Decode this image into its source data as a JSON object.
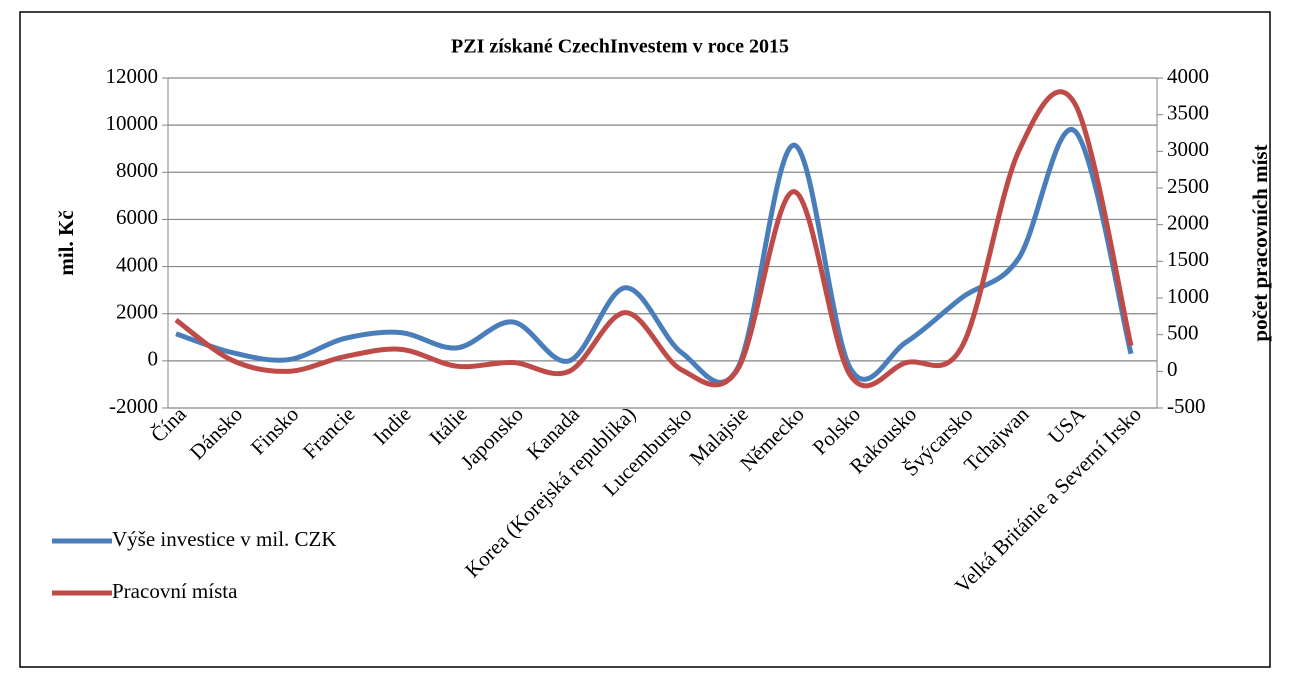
{
  "chart_data": {
    "type": "line",
    "title": "PZI získané CzechInvestem v roce 2015",
    "y_label": "mil. Kč",
    "y2_label": "počet pracovních míst",
    "categories": [
      "Čína",
      "Dánsko",
      "Finsko",
      "Francie",
      "Indie",
      "Itálie",
      "Japonsko",
      "Kanada",
      "Korea (Korejská republika)",
      "Lucembursko",
      "Malajsie",
      "Německo",
      "Polsko",
      "Rakousko",
      "Švýcarsko",
      "Tchajwan",
      "USA",
      "Velká Británie a Severní Irsko"
    ],
    "series": [
      {
        "name": "Výše investice v mil. CZK",
        "color": "#4a7ebb",
        "axis": "y",
        "values": [
          1150,
          350,
          50,
          950,
          1200,
          550,
          1650,
          0,
          3100,
          350,
          -300,
          9150,
          -300,
          800,
          2700,
          4350,
          9750,
          300
        ]
      },
      {
        "name": "Pracovní místa",
        "color": "#be4b48",
        "axis": "y2",
        "values": [
          700,
          150,
          0,
          200,
          300,
          70,
          120,
          0,
          800,
          20,
          30,
          2450,
          -50,
          120,
          350,
          3000,
          3650,
          350
        ]
      }
    ],
    "ylim": [
      -2000,
      12000
    ],
    "yticks": [
      -2000,
      0,
      2000,
      4000,
      6000,
      8000,
      10000,
      12000
    ],
    "y2lim": [
      -500,
      4000
    ],
    "y2ticks": [
      -500,
      0,
      500,
      1000,
      1500,
      2000,
      2500,
      3000,
      3500,
      4000
    ],
    "grid": true,
    "legend": "bottom-left",
    "smooth": true
  }
}
